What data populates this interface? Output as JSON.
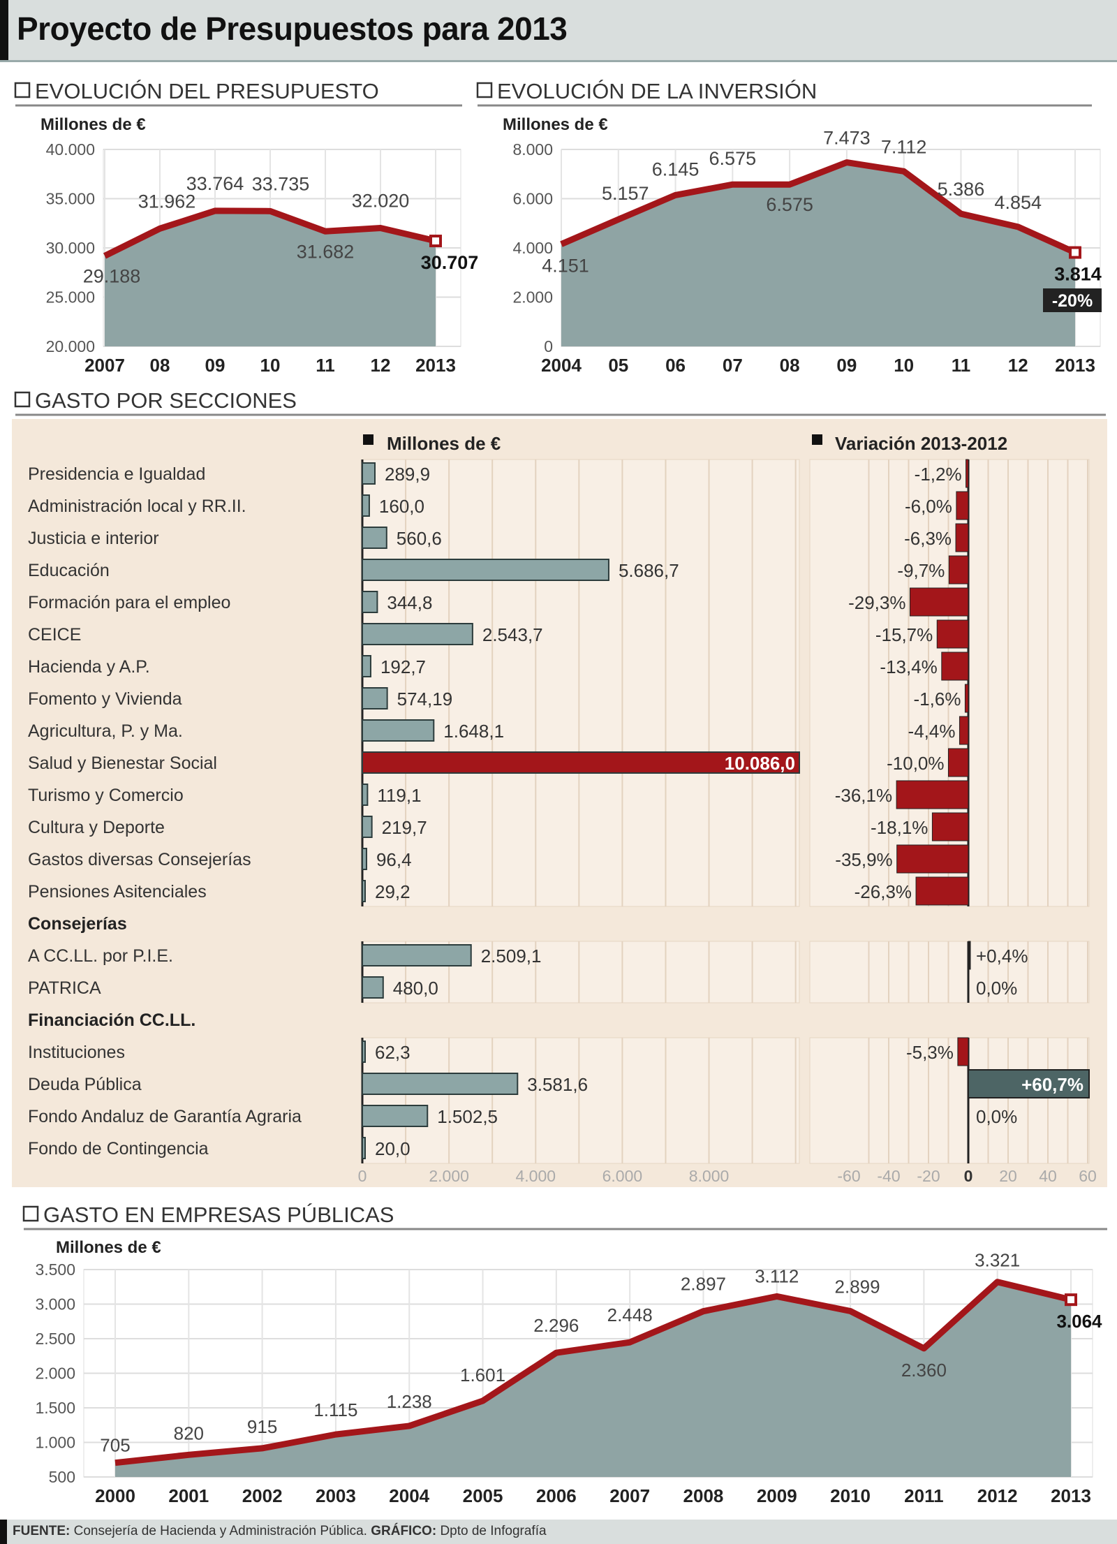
{
  "title": "Proyecto de Presupuestos para 2013",
  "colors": {
    "accent_red": "#a3161a",
    "area_fill": "#8fa4a4",
    "bar_fill": "#8da6a6",
    "panel_bg": "#f4e8da",
    "dark_teal": "#4d6565"
  },
  "chart_data": [
    {
      "type": "area",
      "title": "EVOLUCIÓN DEL PRESUPUESTO",
      "ylabel": "Millones de €",
      "categories": [
        "2007",
        "08",
        "09",
        "10",
        "11",
        "12",
        "2013"
      ],
      "values": [
        29188,
        31962,
        33764,
        33735,
        31682,
        32020,
        30707
      ],
      "ylim": [
        20000,
        40000
      ],
      "yticks": [
        20000,
        25000,
        30000,
        35000,
        40000
      ],
      "grid": true
    },
    {
      "type": "area",
      "title": "EVOLUCIÓN DE LA INVERSIÓN",
      "ylabel": "Millones de €",
      "categories": [
        "2004",
        "05",
        "06",
        "07",
        "08",
        "09",
        "10",
        "11",
        "12",
        "2013"
      ],
      "values": [
        4151,
        5157,
        6145,
        6575,
        6575,
        7473,
        7112,
        5386,
        4854,
        3814
      ],
      "ylim": [
        0,
        8000
      ],
      "yticks": [
        0,
        2000,
        4000,
        6000,
        8000
      ],
      "annotation": "-20%",
      "grid": true
    },
    {
      "type": "bar",
      "title": "GASTO POR SECCIONES",
      "legend": [
        "Millones de €",
        "Variación 2013-2012"
      ],
      "xticks_amount": [
        0,
        2000,
        4000,
        6000,
        8000
      ],
      "xticks_variation": [
        -60,
        -40,
        -20,
        0,
        20,
        40,
        60
      ],
      "rows": [
        {
          "label": "Presidencia e Igualdad",
          "value": 289.9,
          "value_label": "289,9",
          "variation": -1.2,
          "variation_label": "-1,2%"
        },
        {
          "label": "Administración local y RR.II.",
          "value": 160.0,
          "value_label": "160,0",
          "variation": -6.0,
          "variation_label": "-6,0%"
        },
        {
          "label": "Justicia e interior",
          "value": 560.6,
          "value_label": "560,6",
          "variation": -6.3,
          "variation_label": "-6,3%"
        },
        {
          "label": "Educación",
          "value": 5686.7,
          "value_label": "5.686,7",
          "variation": -9.7,
          "variation_label": "-9,7%"
        },
        {
          "label": "Formación para el empleo",
          "value": 344.8,
          "value_label": "344,8",
          "variation": -29.3,
          "variation_label": "-29,3%"
        },
        {
          "label": "CEICE",
          "value": 2543.7,
          "value_label": "2.543,7",
          "variation": -15.7,
          "variation_label": "-15,7%"
        },
        {
          "label": "Hacienda y A.P.",
          "value": 192.7,
          "value_label": "192,7",
          "variation": -13.4,
          "variation_label": "-13,4%"
        },
        {
          "label": "Fomento y Vivienda",
          "value": 574.19,
          "value_label": "574,19",
          "variation": -1.6,
          "variation_label": "-1,6%"
        },
        {
          "label": "Agricultura, P. y Ma.",
          "value": 1648.1,
          "value_label": "1.648,1",
          "variation": -4.4,
          "variation_label": "-4,4%"
        },
        {
          "label": "Salud y Bienestar Social",
          "value": 10086.0,
          "value_label": "10.086,0",
          "variation": -10.0,
          "variation_label": "-10,0%",
          "highlight": true
        },
        {
          "label": "Turismo y Comercio",
          "value": 119.1,
          "value_label": "119,1",
          "variation": -36.1,
          "variation_label": "-36,1%"
        },
        {
          "label": "Cultura y Deporte",
          "value": 219.7,
          "value_label": "219,7",
          "variation": -18.1,
          "variation_label": "-18,1%"
        },
        {
          "label": "Gastos diversas Consejerías",
          "value": 96.4,
          "value_label": "96,4",
          "variation": -35.9,
          "variation_label": "-35,9%"
        },
        {
          "label": "Pensiones Asitenciales",
          "value": 29.2,
          "value_label": "29,2",
          "variation": -26.3,
          "variation_label": "-26,3%"
        },
        {
          "header": "Consejerías"
        },
        {
          "label": "A CC.LL. por P.I.E.",
          "value": 2509.1,
          "value_label": "2.509,1",
          "variation": 0.4,
          "variation_label": "+0,4%"
        },
        {
          "label": "PATRICA",
          "value": 480.0,
          "value_label": "480,0",
          "variation": 0.0,
          "variation_label": "0,0%"
        },
        {
          "header": "Financiación CC.LL."
        },
        {
          "label": "Instituciones",
          "value": 62.3,
          "value_label": "62,3",
          "variation": -5.3,
          "variation_label": "-5,3%"
        },
        {
          "label": "Deuda Pública",
          "value": 3581.6,
          "value_label": "3.581,6",
          "variation": 60.7,
          "variation_label": "+60,7%",
          "highlight_variation": true
        },
        {
          "label": "Fondo Andaluz de Garantía Agraria",
          "value": 1502.5,
          "value_label": "1.502,5",
          "variation": 0.0,
          "variation_label": "0,0%"
        },
        {
          "label": "Fondo de Contingencia",
          "value": 20.0,
          "value_label": "20,0"
        }
      ]
    },
    {
      "type": "area",
      "title": "GASTO EN EMPRESAS PÚBLICAS",
      "ylabel": "Millones de €",
      "categories": [
        "2000",
        "2001",
        "2002",
        "2003",
        "2004",
        "2005",
        "2006",
        "2007",
        "2008",
        "2009",
        "2010",
        "2011",
        "2012",
        "2013"
      ],
      "values": [
        705,
        820,
        915,
        1115,
        1238,
        1601,
        2296,
        2448,
        2897,
        3112,
        2899,
        2360,
        3321,
        3064
      ],
      "ylim": [
        500,
        3500
      ],
      "yticks": [
        500,
        1000,
        1500,
        2000,
        2500,
        3000,
        3500
      ],
      "grid": true
    }
  ],
  "footer": {
    "source_label": "FUENTE:",
    "source": "Consejería de Hacienda y Administración Pública.",
    "graphic_label": "GRÁFICO:",
    "graphic": "Dpto de Infografía"
  }
}
